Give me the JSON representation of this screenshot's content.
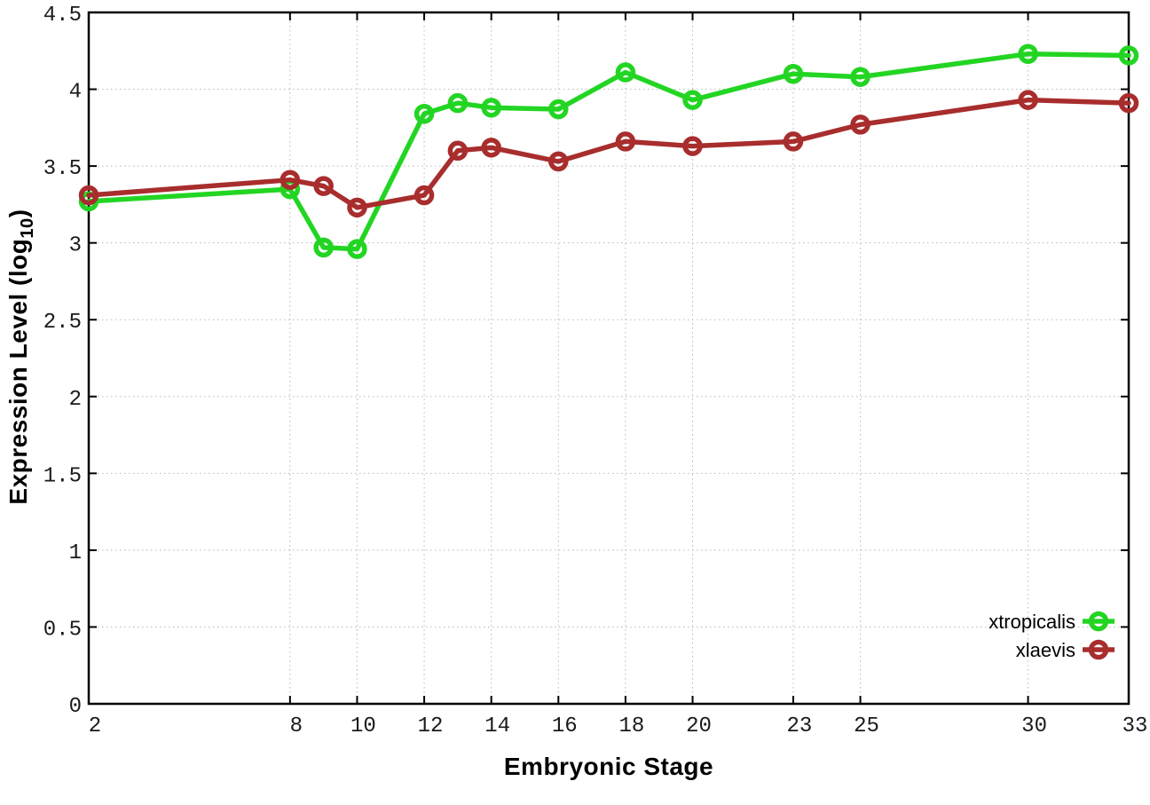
{
  "chart_data": {
    "type": "line",
    "title": "",
    "xlabel": "Embryonic Stage",
    "ylabel_prefix": "Expression Level (log",
    "ylabel_sub": "10",
    "ylabel_suffix": ")",
    "xlim": [
      2,
      33
    ],
    "ylim": [
      0,
      4.5
    ],
    "xticks": [
      2,
      8,
      10,
      12,
      14,
      16,
      18,
      20,
      23,
      25,
      30,
      33
    ],
    "xtick_labels": [
      "2",
      "8",
      "10",
      "12",
      "14",
      "16",
      "18",
      "20",
      "23",
      "25",
      "30",
      "33"
    ],
    "yticks": [
      0,
      0.5,
      1,
      1.5,
      2,
      2.5,
      3,
      3.5,
      4,
      4.5
    ],
    "ytick_labels": [
      "0",
      "0.5",
      "1",
      "1.5",
      "2",
      "2.5",
      "3",
      "3.5",
      "4",
      "4.5"
    ],
    "grid": true,
    "legend_position": "bottom-right-inside",
    "x": [
      2,
      8,
      9,
      10,
      12,
      13,
      14,
      16,
      18,
      20,
      23,
      25,
      30,
      33
    ],
    "series": [
      {
        "name": "xtropicalis",
        "color": "#23d523",
        "values": [
          3.27,
          3.35,
          2.97,
          2.96,
          3.84,
          3.91,
          3.88,
          3.87,
          4.11,
          3.93,
          4.1,
          4.08,
          4.23,
          4.22
        ]
      },
      {
        "name": "xlaevis",
        "color": "#a82d2d",
        "values": [
          3.31,
          3.41,
          3.37,
          3.23,
          3.31,
          3.6,
          3.62,
          3.53,
          3.66,
          3.63,
          3.66,
          3.77,
          3.93,
          3.91
        ]
      }
    ],
    "colors": {
      "axis": "#000000",
      "grid": "#b9b9b9",
      "tick_text": "#1a1a1a",
      "background": "#ffffff"
    }
  }
}
